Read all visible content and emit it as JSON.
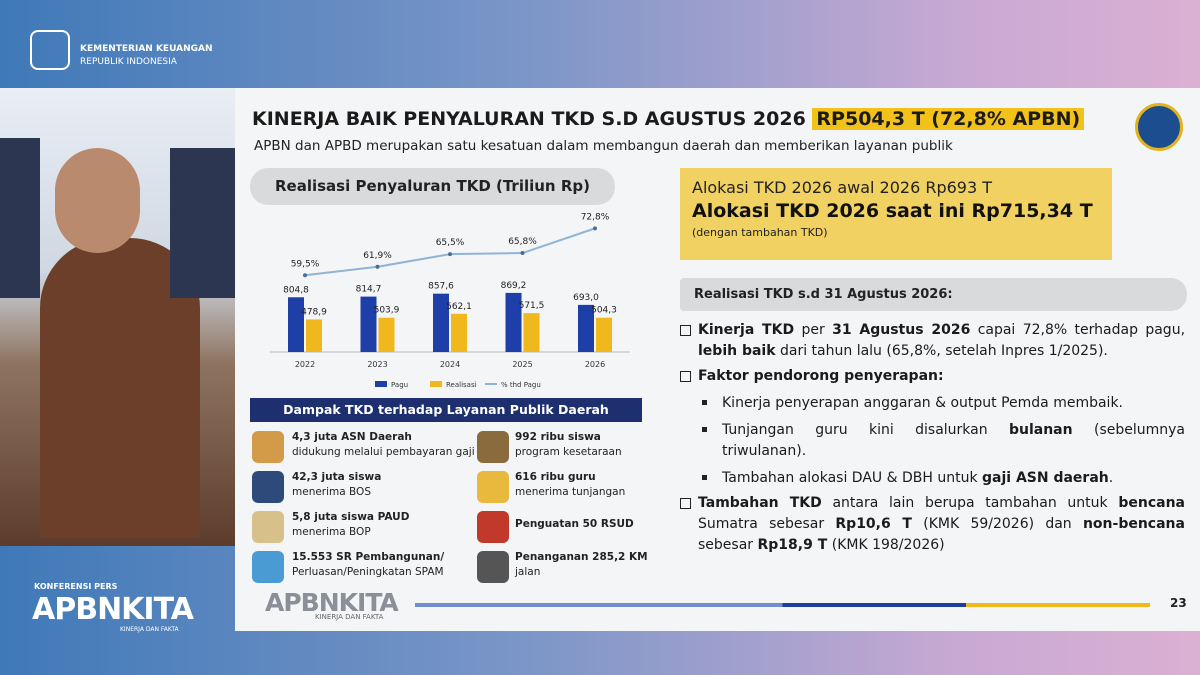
{
  "header": {
    "org": "KEMENTERIAN KEUANGAN",
    "country": "REPUBLIK INDONESIA"
  },
  "sidebar": {
    "event": "KONFERENSI PERS",
    "brand": "APBNKITA",
    "tagline": "KINERJA DAN FAKTA"
  },
  "slide": {
    "title": "KINERJA BAIK PENYALURAN TKD S.D AGUSTUS 2026",
    "highlight": "RP504,3 T (72,8% APBN)",
    "subtitle": "APBN dan APBD merupakan satu kesatuan dalam membangun daerah dan memberikan layanan publik",
    "allocation": {
      "initial": "Alokasi TKD 2026 awal 2026 Rp693 T",
      "current": "Alokasi TKD 2026 saat ini Rp715,34 T",
      "note": "(dengan tambahan TKD)"
    },
    "realization_heading": "Realisasi TKD s.d 31 Agustus 2026:",
    "bullets": [
      {
        "runs": [
          {
            "text": "Kinerja TKD",
            "bold": true
          },
          {
            "text": " per "
          },
          {
            "text": "31 Agustus 2026",
            "bold": true
          },
          {
            "text": " capai 72,8% terhadap pagu, "
          },
          {
            "text": "lebih baik",
            "bold": true
          },
          {
            "text": " dari tahun lalu (65,8%, setelah Inpres 1/2025)."
          }
        ]
      },
      {
        "runs": [
          {
            "text": "Faktor pendorong penyerapan:",
            "bold": true
          }
        ],
        "sub": [
          [
            {
              "text": "Kinerja penyerapan anggaran & output Pemda membaik."
            }
          ],
          [
            {
              "text": "Tunjangan guru kini disalurkan "
            },
            {
              "text": "bulanan",
              "bold": true
            },
            {
              "text": " (sebelumnya triwulanan)."
            }
          ],
          [
            {
              "text": "Tambahan alokasi DAU & DBH untuk "
            },
            {
              "text": "gaji ASN daerah",
              "bold": true
            },
            {
              "text": "."
            }
          ]
        ]
      },
      {
        "runs": [
          {
            "text": "Tambahan TKD",
            "bold": true
          },
          {
            "text": " antara lain berupa tambahan untuk "
          },
          {
            "text": "bencana",
            "bold": true
          },
          {
            "text": " Sumatra sebesar "
          },
          {
            "text": "Rp10,6 T",
            "bold": true
          },
          {
            "text": " (KMK 59/2026) dan "
          },
          {
            "text": "non-bencana",
            "bold": true
          },
          {
            "text": " sebesar "
          },
          {
            "text": "Rp18,9 T",
            "bold": true
          },
          {
            "text": " (KMK 198/2026)"
          }
        ]
      }
    ],
    "impact": {
      "title": "Dampak TKD terhadap Layanan Publik Daerah",
      "items": [
        {
          "lines": [
            "4,3 juta ASN Daerah",
            "didukung melalui pembayaran gaji"
          ]
        },
        {
          "lines": [
            "992 ribu siswa",
            "program kesetaraan"
          ]
        },
        {
          "lines": [
            "42,3 juta siswa",
            "menerima BOS"
          ]
        },
        {
          "lines": [
            "616 ribu guru",
            "menerima tunjangan"
          ]
        },
        {
          "lines": [
            "5,8 juta siswa PAUD",
            "menerima BOP"
          ]
        },
        {
          "lines": [
            "Penguatan 50 RSUD"
          ]
        },
        {
          "lines": [
            "15.553 SR Pembangunan/",
            "Perluasan/Peningkatan SPAM"
          ]
        },
        {
          "lines": [
            "Penanganan 285,2 KM",
            "jalan"
          ]
        }
      ]
    },
    "footer": {
      "brand": "APBNKITA",
      "tagline": "KINERJA DAN FAKTA",
      "page": "23"
    }
  },
  "chart_data": {
    "type": "bar",
    "title": "Realisasi Penyaluran TKD (Triliun Rp)",
    "categories": [
      "2022",
      "2023",
      "2024",
      "2025",
      "2026"
    ],
    "ylim": [
      0,
      1000
    ],
    "y2lim": [
      0,
      80
    ],
    "series": [
      {
        "name": "Pagu",
        "color": "#1f3fa8",
        "values": [
          804.8,
          814.7,
          857.6,
          869.2,
          693.0
        ],
        "value_labels": [
          "804,8",
          "814,7",
          "857,6",
          "869,2",
          "693,0"
        ]
      },
      {
        "name": "Realisasi",
        "color": "#f0b81c",
        "values": [
          478.9,
          503.9,
          562.1,
          571.5,
          504.3
        ],
        "value_labels": [
          "478,9",
          "503,9",
          "562,1",
          "571,5",
          "504,3"
        ]
      },
      {
        "name": "% thd Pagu",
        "type": "line",
        "axis": "y2",
        "color": "#8fb4d6",
        "values": [
          59.5,
          61.9,
          65.5,
          65.8,
          72.8
        ],
        "value_labels": [
          "59,5%",
          "61,9%",
          "65,5%",
          "65,8%",
          "72,8%"
        ]
      }
    ]
  }
}
